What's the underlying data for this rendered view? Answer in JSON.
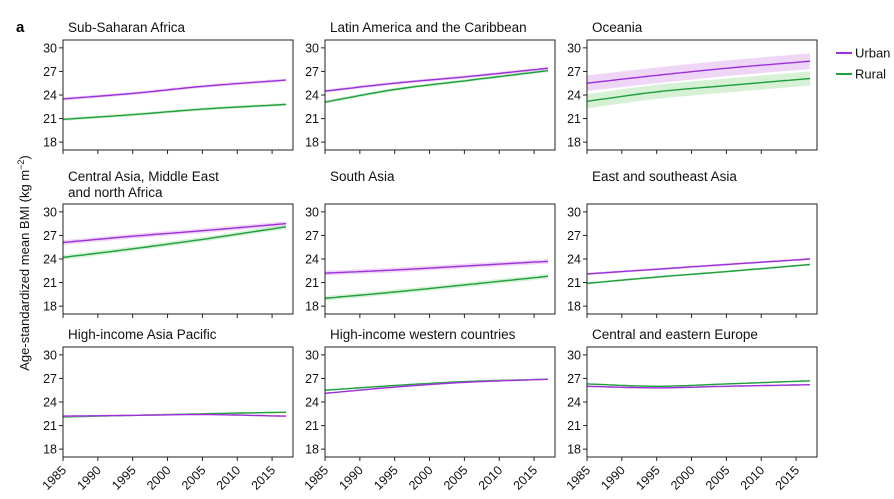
{
  "figure": {
    "panel_letter": "a",
    "ylabel_main": "Age-standardized mean BMI (kg m",
    "ylabel_exp": "−2",
    "ylabel_close": ")"
  },
  "legend": [
    {
      "label": "Urban",
      "color": "#9b30d9"
    },
    {
      "label": "Rural",
      "color": "#1e9e3c"
    }
  ],
  "colors": {
    "urban": "#9b30d9",
    "urban_band": "#e9c8f3",
    "rural": "#1e9e3c",
    "rural_band": "#c9ecc8"
  },
  "chart_data": [
    {
      "type": "line",
      "title_lines": [
        "Sub-Saharan Africa"
      ],
      "x": [
        1985,
        1995,
        2005,
        2017
      ],
      "xlim": [
        1985,
        2018
      ],
      "ylim": [
        17,
        31
      ],
      "yticks": [
        18,
        21,
        24,
        27,
        30
      ],
      "xticks": [
        1985,
        1990,
        1995,
        2000,
        2005,
        2010,
        2015
      ],
      "series": [
        {
          "name": "Urban",
          "values": [
            23.5,
            24.2,
            25.1,
            25.9
          ],
          "band": 0.2
        },
        {
          "name": "Rural",
          "values": [
            20.9,
            21.5,
            22.2,
            22.8
          ],
          "band": 0.2
        }
      ]
    },
    {
      "type": "line",
      "title_lines": [
        "Latin America and the Caribbean"
      ],
      "x": [
        1985,
        1995,
        2005,
        2017
      ],
      "xlim": [
        1985,
        2018
      ],
      "ylim": [
        17,
        31
      ],
      "yticks": [
        18,
        21,
        24,
        27,
        30
      ],
      "xticks": [
        1985,
        1990,
        1995,
        2000,
        2005,
        2010,
        2015
      ],
      "series": [
        {
          "name": "Urban",
          "values": [
            24.5,
            25.5,
            26.3,
            27.4
          ],
          "band": 0.2
        },
        {
          "name": "Rural",
          "values": [
            23.1,
            24.7,
            25.8,
            27.1
          ],
          "band": 0.2
        }
      ]
    },
    {
      "type": "line",
      "title_lines": [
        "Oceania"
      ],
      "x": [
        1985,
        1995,
        2005,
        2017
      ],
      "xlim": [
        1985,
        2018
      ],
      "ylim": [
        17,
        31
      ],
      "yticks": [
        18,
        21,
        24,
        27,
        30
      ],
      "xticks": [
        1985,
        1990,
        1995,
        2000,
        2005,
        2010,
        2015
      ],
      "series": [
        {
          "name": "Urban",
          "values": [
            25.5,
            26.5,
            27.4,
            28.3
          ],
          "band": 1.0
        },
        {
          "name": "Rural",
          "values": [
            23.2,
            24.4,
            25.2,
            26.1
          ],
          "band": 0.9
        }
      ]
    },
    {
      "type": "line",
      "title_lines": [
        "Central Asia, Middle East",
        "and north Africa"
      ],
      "x": [
        1985,
        1995,
        2005,
        2017
      ],
      "xlim": [
        1985,
        2018
      ],
      "ylim": [
        17,
        31
      ],
      "yticks": [
        18,
        21,
        24,
        27,
        30
      ],
      "xticks": [
        1985,
        1990,
        1995,
        2000,
        2005,
        2010,
        2015
      ],
      "series": [
        {
          "name": "Urban",
          "values": [
            26.1,
            26.9,
            27.6,
            28.5
          ],
          "band": 0.3
        },
        {
          "name": "Rural",
          "values": [
            24.2,
            25.3,
            26.5,
            28.1
          ],
          "band": 0.3
        }
      ]
    },
    {
      "type": "line",
      "title_lines": [
        "South Asia"
      ],
      "x": [
        1985,
        1995,
        2005,
        2017
      ],
      "xlim": [
        1985,
        2018
      ],
      "ylim": [
        17,
        31
      ],
      "yticks": [
        18,
        21,
        24,
        27,
        30
      ],
      "xticks": [
        1985,
        1990,
        1995,
        2000,
        2005,
        2010,
        2015
      ],
      "series": [
        {
          "name": "Urban",
          "values": [
            22.2,
            22.6,
            23.1,
            23.7
          ],
          "band": 0.3
        },
        {
          "name": "Rural",
          "values": [
            19.0,
            19.8,
            20.7,
            21.8
          ],
          "band": 0.3
        }
      ]
    },
    {
      "type": "line",
      "title_lines": [
        "East and southeast Asia"
      ],
      "x": [
        1985,
        1995,
        2005,
        2017
      ],
      "xlim": [
        1985,
        2018
      ],
      "ylim": [
        17,
        31
      ],
      "yticks": [
        18,
        21,
        24,
        27,
        30
      ],
      "xticks": [
        1985,
        1990,
        1995,
        2000,
        2005,
        2010,
        2015
      ],
      "series": [
        {
          "name": "Urban",
          "values": [
            22.1,
            22.7,
            23.3,
            24.0
          ],
          "band": 0.15
        },
        {
          "name": "Rural",
          "values": [
            20.9,
            21.7,
            22.4,
            23.3
          ],
          "band": 0.15
        }
      ]
    },
    {
      "type": "line",
      "title_lines": [
        "High-income Asia Pacific"
      ],
      "x": [
        1985,
        1995,
        2005,
        2017
      ],
      "xlim": [
        1985,
        2018
      ],
      "ylim": [
        17,
        31
      ],
      "yticks": [
        18,
        21,
        24,
        27,
        30
      ],
      "xticks": [
        1985,
        1990,
        1995,
        2000,
        2005,
        2010,
        2015
      ],
      "series": [
        {
          "name": "Urban",
          "values": [
            22.2,
            22.3,
            22.4,
            22.2
          ],
          "band": 0.1
        },
        {
          "name": "Rural",
          "values": [
            22.1,
            22.3,
            22.5,
            22.7
          ],
          "band": 0.1
        }
      ]
    },
    {
      "type": "line",
      "title_lines": [
        "High-income western countries"
      ],
      "x": [
        1985,
        1995,
        2005,
        2017
      ],
      "xlim": [
        1985,
        2018
      ],
      "ylim": [
        17,
        31
      ],
      "yticks": [
        18,
        21,
        24,
        27,
        30
      ],
      "xticks": [
        1985,
        1990,
        1995,
        2000,
        2005,
        2010,
        2015
      ],
      "series": [
        {
          "name": "Urban",
          "values": [
            25.1,
            25.9,
            26.5,
            26.9
          ],
          "band": 0.1
        },
        {
          "name": "Rural",
          "values": [
            25.5,
            26.1,
            26.6,
            26.9
          ],
          "band": 0.1
        }
      ]
    },
    {
      "type": "line",
      "title_lines": [
        "Central and eastern Europe"
      ],
      "x": [
        1985,
        1995,
        2005,
        2017
      ],
      "xlim": [
        1985,
        2018
      ],
      "ylim": [
        17,
        31
      ],
      "yticks": [
        18,
        21,
        24,
        27,
        30
      ],
      "xticks": [
        1985,
        1990,
        1995,
        2000,
        2005,
        2010,
        2015
      ],
      "series": [
        {
          "name": "Urban",
          "values": [
            26.0,
            25.8,
            26.0,
            26.2
          ],
          "band": 0.1
        },
        {
          "name": "Rural",
          "values": [
            26.3,
            26.0,
            26.3,
            26.7
          ],
          "band": 0.1
        }
      ]
    }
  ]
}
